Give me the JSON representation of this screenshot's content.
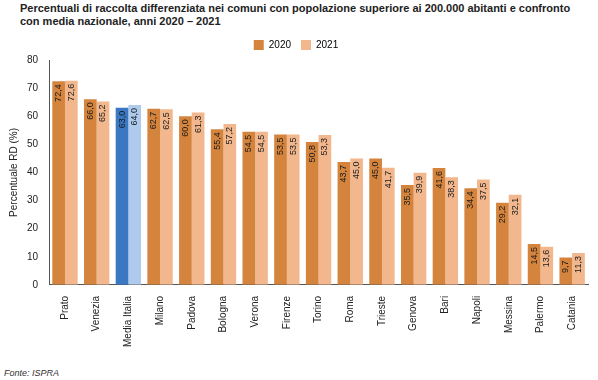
{
  "chart_data": {
    "type": "bar",
    "title": "Percentuali di raccolta differenziata nei comuni con popolazione superiore ai 200.000 abitanti e confronto con media nazionale, anni 2020 – 2021",
    "y_label": "Percentuale RD (%)",
    "source": "Fonte: ISPRA",
    "categories": [
      "Prato",
      "Venezia",
      "Media Italia",
      "Milano",
      "Padova",
      "Bologna",
      "Verona",
      "Firenze",
      "Torino",
      "Roma",
      "Trieste",
      "Genova",
      "Bari",
      "Napoli",
      "Messina",
      "Palermo",
      "Catania"
    ],
    "series": [
      {
        "name": "2020",
        "color": "#d4843c",
        "colors": [
          "#d4843c",
          "#d4843c",
          "#3a78c3",
          "#d4843c",
          "#d4843c",
          "#d4843c",
          "#d4843c",
          "#d4843c",
          "#d4843c",
          "#d4843c",
          "#d4843c",
          "#d4843c",
          "#d4843c",
          "#d4843c",
          "#d4843c",
          "#d4843c",
          "#d4843c"
        ],
        "values": [
          72.4,
          66.0,
          63.0,
          62.7,
          60.0,
          55.4,
          54.5,
          53.5,
          50.8,
          43.7,
          45.0,
          35.5,
          41.6,
          34.4,
          29.2,
          14.5,
          9.7
        ],
        "value_labels": [
          "72,4",
          "66,0",
          "63,0",
          "62,7",
          "60,0",
          "55,4",
          "54,5",
          "53,5",
          "50,8",
          "43,7",
          "45,0",
          "35,5",
          "41,6",
          "34,4",
          "29,2",
          "14,5",
          "9,7"
        ]
      },
      {
        "name": "2021",
        "color": "#f2b78c",
        "colors": [
          "#f2b78c",
          "#f2b78c",
          "#aecbee",
          "#f2b78c",
          "#f2b78c",
          "#f2b78c",
          "#f2b78c",
          "#f2b78c",
          "#f2b78c",
          "#f2b78c",
          "#f2b78c",
          "#f2b78c",
          "#f2b78c",
          "#f2b78c",
          "#f2b78c",
          "#f2b78c",
          "#f2b78c"
        ],
        "values": [
          72.6,
          65.2,
          64.0,
          62.5,
          61.3,
          57.2,
          54.5,
          53.5,
          53.3,
          45.0,
          41.7,
          39.9,
          38.3,
          37.5,
          32.1,
          13.6,
          11.3
        ],
        "value_labels": [
          "72,6",
          "65,2",
          "64,0",
          "62,5",
          "61,3",
          "57,2",
          "54,5",
          "53,5",
          "53,3",
          "45,0",
          "41,7",
          "39,9",
          "38,3",
          "37,5",
          "32,1",
          "13,6",
          "11,3"
        ]
      }
    ],
    "ylim": [
      0,
      80
    ],
    "yticks": [
      0,
      10,
      20,
      30,
      40,
      50,
      60,
      70,
      80
    ],
    "grid": false,
    "legend": "top",
    "data_labels": true
  }
}
